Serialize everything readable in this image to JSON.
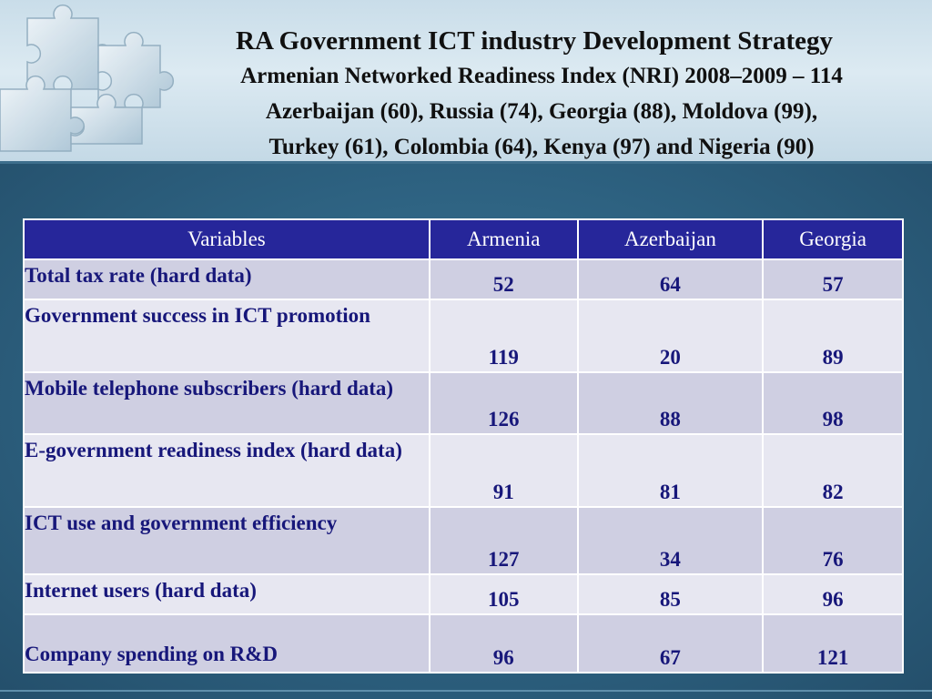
{
  "slide": {
    "title": "RA Government ICT industry Development Strategy",
    "subtitle_lines": [
      "Armenian Networked Readiness Index (NRI) 2008–2009 – 114",
      "Azerbaijan (60), Russia (74), Georgia (88), Moldova (99),",
      "Turkey (61), Colombia (64), Kenya (97) and Nigeria (90)"
    ]
  },
  "table": {
    "headers": [
      "Variables",
      "Armenia",
      "Azerbaijan",
      "Georgia"
    ],
    "rows": [
      {
        "variable": "Total tax rate (hard data)",
        "armenia": "52",
        "azerbaijan": "64",
        "georgia": "57"
      },
      {
        "variable": "Government success in ICT promotion",
        "armenia": "119",
        "azerbaijan": "20",
        "georgia": "89"
      },
      {
        "variable": "Mobile telephone subscribers (hard data)",
        "armenia": "126",
        "azerbaijan": "88",
        "georgia": "98"
      },
      {
        "variable": "E-government readiness index (hard data)",
        "armenia": "91",
        "azerbaijan": "81",
        "georgia": "82"
      },
      {
        "variable": "ICT use and government efficiency",
        "armenia": "127",
        "azerbaijan": "34",
        "georgia": "76"
      },
      {
        "variable": "Internet users (hard data)",
        "armenia": "105",
        "azerbaijan": "85",
        "georgia": "96"
      },
      {
        "variable": "Company spending on R&D",
        "armenia": "96",
        "azerbaijan": "67",
        "georgia": "121"
      }
    ]
  },
  "colors": {
    "header_row": "#26269a",
    "row_dark": "#cfcfe2",
    "row_light": "#e7e7f1",
    "cell_text": "#17177a",
    "background": "#2f6382"
  },
  "icons": [
    "puzzle-pieces-decoration"
  ]
}
